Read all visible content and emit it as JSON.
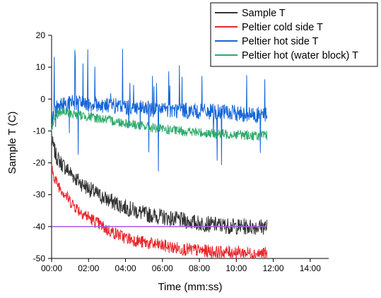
{
  "chart_data": {
    "type": "line",
    "xlabel": "Time (mm:ss)",
    "ylabel": "Sample T (C)",
    "xlim": [
      0,
      900
    ],
    "ylim": [
      -50,
      20
    ],
    "x_ticks": [
      {
        "value": 0,
        "label": "00:00"
      },
      {
        "value": 120,
        "label": "02:00"
      },
      {
        "value": 240,
        "label": "04:00"
      },
      {
        "value": 360,
        "label": "06:00"
      },
      {
        "value": 480,
        "label": "08:00"
      },
      {
        "value": 600,
        "label": "10:00"
      },
      {
        "value": 720,
        "label": "12:00"
      },
      {
        "value": 840,
        "label": "14:00"
      }
    ],
    "y_ticks": [
      {
        "value": 20,
        "label": "20"
      },
      {
        "value": 10,
        "label": "10"
      },
      {
        "value": 0,
        "label": "0"
      },
      {
        "value": -10,
        "label": "-10"
      },
      {
        "value": -20,
        "label": "-20"
      },
      {
        "value": -30,
        "label": "-30"
      },
      {
        "value": -40,
        "label": "-40"
      },
      {
        "value": -50,
        "label": "-50"
      }
    ],
    "legend_position": "top-right",
    "grid": false,
    "reference_line": {
      "y": -40,
      "color": "#a259e6"
    },
    "series": [
      {
        "name": "Sample T",
        "color": "#333333",
        "x": [
          0,
          15,
          30,
          60,
          90,
          120,
          150,
          180,
          240,
          300,
          360,
          420,
          480,
          540,
          600,
          660,
          700
        ],
        "y": [
          -13,
          -18,
          -20,
          -23,
          -26,
          -28,
          -30,
          -31.5,
          -34,
          -36,
          -37,
          -38,
          -39,
          -39.5,
          -40,
          -40,
          -40
        ],
        "noise": 2.5
      },
      {
        "name": "Peltier cold side T",
        "color": "#e8242a",
        "x": [
          0,
          15,
          30,
          60,
          90,
          120,
          150,
          180,
          240,
          300,
          360,
          420,
          480,
          540,
          600,
          660,
          700
        ],
        "y": [
          -22,
          -26,
          -28,
          -32,
          -35,
          -37,
          -39,
          -41,
          -43.5,
          -45,
          -46,
          -47,
          -47.5,
          -48,
          -48,
          -48.5,
          -48.5
        ],
        "noise": 2
      },
      {
        "name": "Peltier hot side T",
        "color": "#1565d8",
        "x": [
          0,
          15,
          30,
          60,
          120,
          180,
          240,
          300,
          360,
          420,
          480,
          540,
          600,
          660,
          700
        ],
        "y": [
          -6,
          -3,
          -2,
          -1,
          -1.5,
          -2,
          -2.5,
          -3,
          -3.5,
          -3.5,
          -4,
          -4,
          -4.5,
          -5,
          -5
        ],
        "noise": 2.5,
        "spikes": true
      },
      {
        "name": "Peltier hot (water block) T",
        "color": "#2ea96b",
        "x": [
          0,
          15,
          30,
          60,
          120,
          180,
          240,
          300,
          360,
          420,
          480,
          540,
          600,
          660,
          700
        ],
        "y": [
          -9,
          -5,
          -4,
          -4.5,
          -5.5,
          -6.5,
          -7.5,
          -8.5,
          -9.5,
          -10,
          -10.5,
          -11,
          -11,
          -11.5,
          -11.5
        ],
        "noise": 1.5
      }
    ]
  }
}
